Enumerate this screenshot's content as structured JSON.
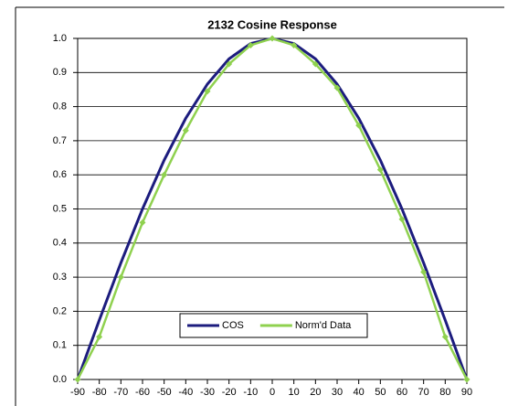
{
  "chart_data": {
    "type": "line",
    "title": "2132 Cosine Response",
    "x": [
      -90,
      -80,
      -70,
      -60,
      -50,
      -40,
      -30,
      -20,
      -10,
      0,
      10,
      20,
      30,
      40,
      50,
      60,
      70,
      80,
      90
    ],
    "series": [
      {
        "name": "COS",
        "color": "#1c1c7e",
        "values": [
          0,
          0.174,
          0.342,
          0.5,
          0.643,
          0.766,
          0.866,
          0.94,
          0.985,
          1,
          0.985,
          0.94,
          0.866,
          0.766,
          0.643,
          0.5,
          0.342,
          0.174,
          0
        ]
      },
      {
        "name": "Norm'd Data",
        "color": "#8fd14f",
        "marker": "diamond",
        "values": [
          0,
          0.125,
          0.3,
          0.46,
          0.6,
          0.73,
          0.845,
          0.925,
          0.98,
          1,
          0.98,
          0.925,
          0.855,
          0.745,
          0.615,
          0.47,
          0.315,
          0.125,
          0
        ]
      }
    ],
    "xlim": [
      -90,
      90
    ],
    "xticks": [
      -90,
      -80,
      -70,
      -60,
      -50,
      -40,
      -30,
      -20,
      -10,
      0,
      10,
      20,
      30,
      40,
      50,
      60,
      70,
      80,
      90
    ],
    "ylim": [
      0,
      1
    ],
    "yticks": [
      {
        "value": 0,
        "label": "0.0"
      },
      0.1,
      0.2,
      0.3,
      0.4,
      0.5,
      0.6,
      0.7,
      0.8,
      0.9,
      {
        "value": 1,
        "label": "1.0"
      }
    ],
    "grid": true,
    "legend": "bottom"
  }
}
